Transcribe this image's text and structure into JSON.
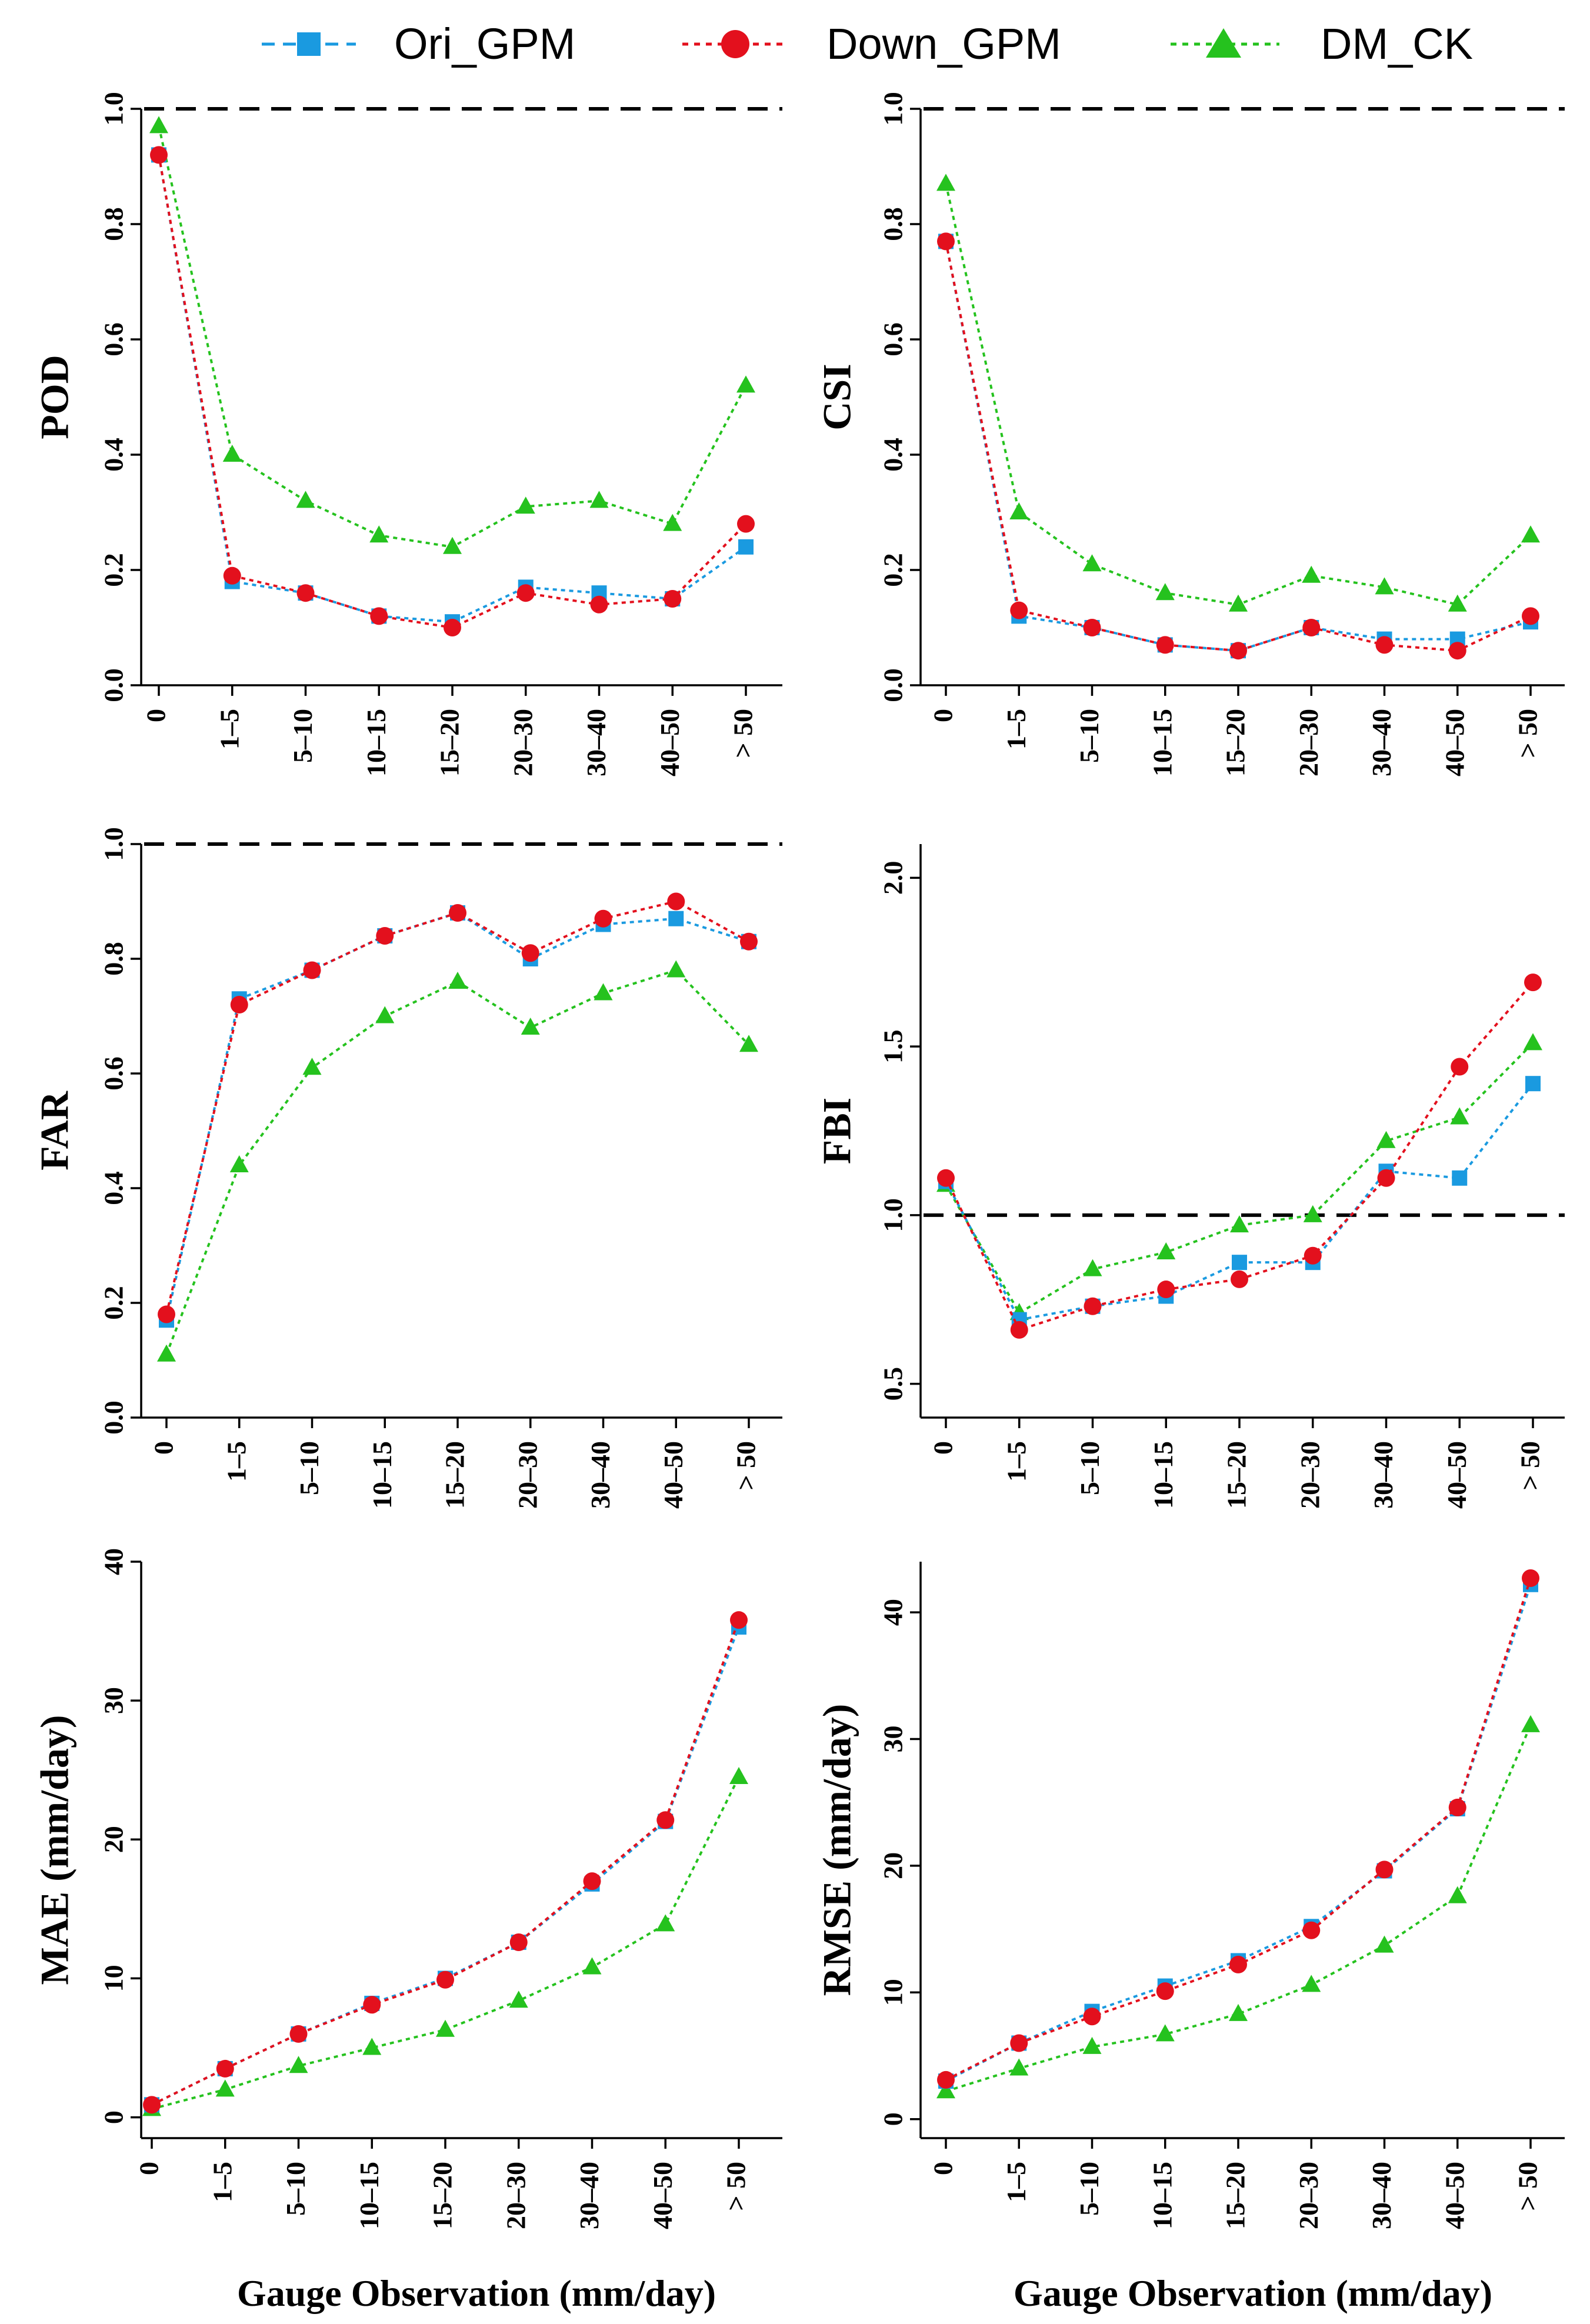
{
  "legend": {
    "items": [
      {
        "name": "Ori_GPM",
        "color": "#1a9ae0",
        "marker": "square"
      },
      {
        "name": "Down_GPM",
        "color": "#e3101d",
        "marker": "circle"
      },
      {
        "name": "DM_CK",
        "color": "#25c21e",
        "marker": "triangle"
      }
    ]
  },
  "xlabel": "Gauge Observation (mm/day)",
  "chart_data": [
    {
      "type": "line",
      "ylabel": "POD",
      "categories": [
        "0",
        "1–5",
        "5–10",
        "10–15",
        "15–20",
        "20–30",
        "30–40",
        "40–50",
        "> 50"
      ],
      "ylim": [
        0,
        1.0
      ],
      "yticks": [
        "0.0",
        "0.2",
        "0.4",
        "0.6",
        "0.8",
        "1.0"
      ],
      "yticks_val": [
        0,
        0.2,
        0.4,
        0.6,
        0.8,
        1.0
      ],
      "reference_line": 1.0,
      "series": [
        {
          "name": "Ori_GPM",
          "values": [
            0.92,
            0.18,
            0.16,
            0.12,
            0.11,
            0.17,
            0.16,
            0.15,
            0.24
          ]
        },
        {
          "name": "Down_GPM",
          "values": [
            0.92,
            0.19,
            0.16,
            0.12,
            0.1,
            0.16,
            0.14,
            0.15,
            0.28
          ]
        },
        {
          "name": "DM_CK",
          "values": [
            0.97,
            0.4,
            0.32,
            0.26,
            0.24,
            0.31,
            0.32,
            0.28,
            0.52
          ]
        }
      ]
    },
    {
      "type": "line",
      "ylabel": "CSI",
      "categories": [
        "0",
        "1–5",
        "5–10",
        "10–15",
        "15–20",
        "20–30",
        "30–40",
        "40–50",
        "> 50"
      ],
      "ylim": [
        0,
        1.0
      ],
      "yticks": [
        "0.0",
        "0.2",
        "0.4",
        "0.6",
        "0.8",
        "1.0"
      ],
      "yticks_val": [
        0,
        0.2,
        0.4,
        0.6,
        0.8,
        1.0
      ],
      "reference_line": 1.0,
      "series": [
        {
          "name": "Ori_GPM",
          "values": [
            0.77,
            0.12,
            0.1,
            0.07,
            0.06,
            0.1,
            0.08,
            0.08,
            0.11
          ]
        },
        {
          "name": "Down_GPM",
          "values": [
            0.77,
            0.13,
            0.1,
            0.07,
            0.06,
            0.1,
            0.07,
            0.06,
            0.12
          ]
        },
        {
          "name": "DM_CK",
          "values": [
            0.87,
            0.3,
            0.21,
            0.16,
            0.14,
            0.19,
            0.17,
            0.14,
            0.26
          ]
        }
      ]
    },
    {
      "type": "line",
      "ylabel": "FAR",
      "categories": [
        "0",
        "1–5",
        "5–10",
        "10–15",
        "15–20",
        "20–30",
        "30–40",
        "40–50",
        "> 50"
      ],
      "ylim": [
        0,
        1.0
      ],
      "yticks": [
        "0.0",
        "0.2",
        "0.4",
        "0.6",
        "0.8",
        "1.0"
      ],
      "yticks_val": [
        0,
        0.2,
        0.4,
        0.6,
        0.8,
        1.0
      ],
      "reference_line": 1.0,
      "series": [
        {
          "name": "Ori_GPM",
          "values": [
            0.17,
            0.73,
            0.78,
            0.84,
            0.88,
            0.8,
            0.86,
            0.87,
            0.83
          ]
        },
        {
          "name": "Down_GPM",
          "values": [
            0.18,
            0.72,
            0.78,
            0.84,
            0.88,
            0.81,
            0.87,
            0.9,
            0.83
          ]
        },
        {
          "name": "DM_CK",
          "values": [
            0.11,
            0.44,
            0.61,
            0.7,
            0.76,
            0.68,
            0.74,
            0.78,
            0.65
          ]
        }
      ]
    },
    {
      "type": "line",
      "ylabel": "FBI",
      "categories": [
        "0",
        "1–5",
        "5–10",
        "10–15",
        "15–20",
        "20–30",
        "30–40",
        "40–50",
        "> 50"
      ],
      "ylim": [
        0.4,
        2.1
      ],
      "yticks": [
        "0.5",
        "1.0",
        "1.5",
        "2.0"
      ],
      "yticks_val": [
        0.5,
        1.0,
        1.5,
        2.0
      ],
      "reference_line": 1.0,
      "series": [
        {
          "name": "Ori_GPM",
          "values": [
            1.1,
            0.69,
            0.73,
            0.76,
            0.86,
            0.86,
            1.13,
            1.11,
            1.39
          ]
        },
        {
          "name": "Down_GPM",
          "values": [
            1.11,
            0.66,
            0.73,
            0.78,
            0.81,
            0.88,
            1.11,
            1.44,
            1.69
          ]
        },
        {
          "name": "DM_CK",
          "values": [
            1.09,
            0.71,
            0.84,
            0.89,
            0.97,
            1.0,
            1.22,
            1.29,
            1.51
          ]
        }
      ]
    },
    {
      "type": "line",
      "ylabel": "MAE (mm/day)",
      "categories": [
        "0",
        "1–5",
        "5–10",
        "10–15",
        "15–20",
        "20–30",
        "30–40",
        "40–50",
        "> 50"
      ],
      "ylim": [
        -1.5,
        40
      ],
      "yticks": [
        "0",
        "10",
        "20",
        "30",
        "40"
      ],
      "yticks_val": [
        0,
        10,
        20,
        30,
        40
      ],
      "reference_line": null,
      "series": [
        {
          "name": "Ori_GPM",
          "values": [
            0.9,
            3.5,
            6.0,
            8.2,
            10.0,
            12.6,
            16.8,
            21.3,
            35.3
          ]
        },
        {
          "name": "Down_GPM",
          "values": [
            0.9,
            3.5,
            6.0,
            8.1,
            9.9,
            12.6,
            17.0,
            21.4,
            35.8
          ]
        },
        {
          "name": "DM_CK",
          "values": [
            0.6,
            2.0,
            3.7,
            5.0,
            6.3,
            8.4,
            10.8,
            13.9,
            24.5
          ]
        }
      ]
    },
    {
      "type": "line",
      "ylabel": "RMSE (mm/day)",
      "categories": [
        "0",
        "1–5",
        "5–10",
        "10–15",
        "15–20",
        "20–30",
        "30–40",
        "40–50",
        "> 50"
      ],
      "ylim": [
        -1.5,
        44
      ],
      "yticks": [
        "0",
        "10",
        "20",
        "30",
        "40"
      ],
      "yticks_val": [
        0,
        10,
        20,
        30,
        40
      ],
      "reference_line": null,
      "series": [
        {
          "name": "Ori_GPM",
          "values": [
            3.0,
            6.0,
            8.5,
            10.5,
            12.5,
            15.2,
            19.6,
            24.5,
            42.2
          ]
        },
        {
          "name": "Down_GPM",
          "values": [
            3.1,
            6.0,
            8.1,
            10.1,
            12.2,
            14.9,
            19.7,
            24.6,
            42.7
          ]
        },
        {
          "name": "DM_CK",
          "values": [
            2.2,
            4.0,
            5.7,
            6.7,
            8.3,
            10.6,
            13.7,
            17.6,
            31.1
          ]
        }
      ]
    }
  ]
}
